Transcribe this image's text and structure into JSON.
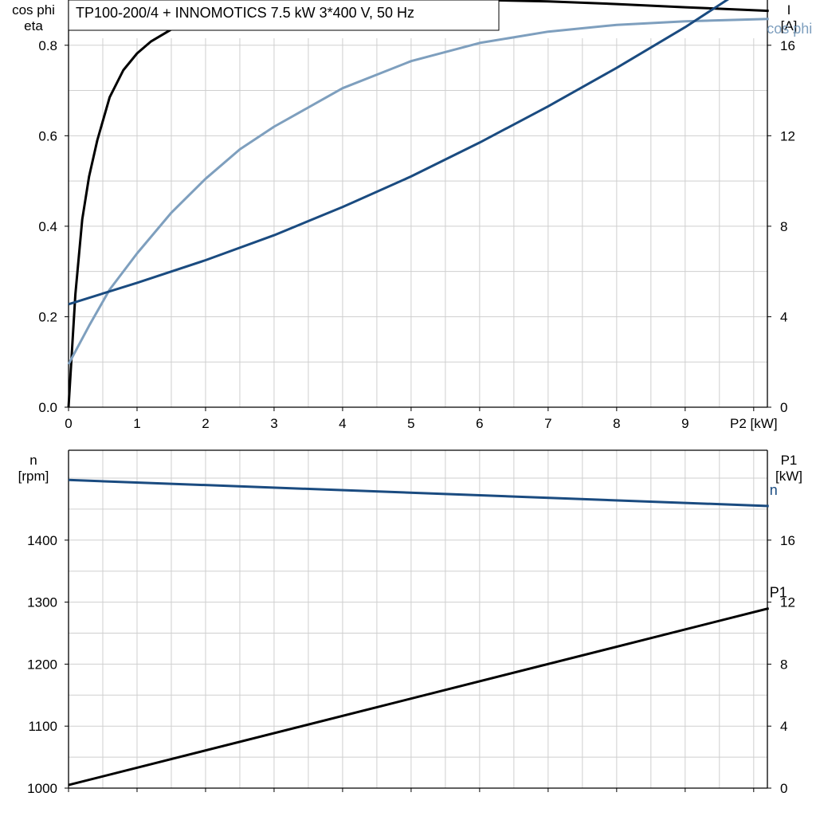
{
  "title": "TP100-200/4 + INNOMOTICS   7.5 kW   3*400 V, 50 Hz",
  "colors": {
    "dark_blue": "#1a4b80",
    "light_blue": "#7e9fbe",
    "black": "#000000",
    "grid": "#cfcfcf"
  },
  "chart_data": [
    {
      "type": "line",
      "xlabel": "P2 [kW]",
      "xlim": [
        0,
        10.2
      ],
      "xticks": [
        "0",
        "1",
        "2",
        "3",
        "4",
        "5",
        "6",
        "7",
        "8",
        "9"
      ],
      "ylabel_left": [
        "cos phi",
        "eta"
      ],
      "ylim_left": [
        0,
        0.9
      ],
      "yticks_left": [
        "0.0",
        "0.2",
        "0.4",
        "0.6",
        "0.8"
      ],
      "ylabel_right": [
        "I",
        "[A]"
      ],
      "ylim_right": [
        0,
        18
      ],
      "yticks_right": [
        "0",
        "4",
        "8",
        "12",
        "16"
      ],
      "grid": true,
      "series": [
        {
          "name": "eta",
          "axis": "left",
          "color": "#000000",
          "x": [
            0,
            0.1,
            0.2,
            0.3,
            0.42,
            0.6,
            0.8,
            1.0,
            1.2,
            1.5,
            2.0,
            2.5,
            3.0,
            4.0,
            5.0,
            6.0,
            7.0,
            8.0,
            9.0,
            10.22
          ],
          "y": [
            0.0,
            0.25,
            0.415,
            0.51,
            0.59,
            0.685,
            0.745,
            0.782,
            0.808,
            0.835,
            0.866,
            0.882,
            0.892,
            0.9,
            0.902,
            0.9,
            0.897,
            0.891,
            0.884,
            0.876
          ]
        },
        {
          "name": "cos phi",
          "axis": "left",
          "color": "#7e9fbe",
          "x": [
            0,
            0.3,
            0.6,
            1.0,
            1.5,
            2.0,
            2.5,
            3.0,
            4.0,
            5.0,
            6.0,
            7.0,
            8.0,
            9.0,
            10.22
          ],
          "y": [
            0.095,
            0.18,
            0.26,
            0.34,
            0.43,
            0.505,
            0.57,
            0.62,
            0.705,
            0.765,
            0.805,
            0.83,
            0.845,
            0.853,
            0.858
          ]
        },
        {
          "name": "I",
          "axis": "right",
          "color": "#1a4b80",
          "x": [
            0,
            1,
            2,
            3,
            4,
            5,
            6,
            7,
            8,
            9,
            10.22
          ],
          "y": [
            4.55,
            5.5,
            6.5,
            7.6,
            8.85,
            10.2,
            11.7,
            13.3,
            15.0,
            16.8,
            19.2
          ]
        }
      ]
    },
    {
      "type": "line",
      "xlim": [
        0,
        10.2
      ],
      "ylabel_left": [
        "n",
        "[rpm]"
      ],
      "ylim_left": [
        1000,
        1545
      ],
      "yticks_left": [
        "1000",
        "1100",
        "1200",
        "1300",
        "1400"
      ],
      "ylabel_right": [
        "P1",
        "[kW]"
      ],
      "ylim_right": [
        0,
        21.8
      ],
      "yticks_right": [
        "0",
        "4",
        "8",
        "12",
        "16"
      ],
      "grid": true,
      "series": [
        {
          "name": "n",
          "axis": "left",
          "color": "#1a4b80",
          "x": [
            0,
            10.22
          ],
          "y": [
            1497,
            1455
          ]
        },
        {
          "name": "P1",
          "axis": "right",
          "color": "#000000",
          "x": [
            0,
            10.22
          ],
          "y": [
            0.2,
            11.6
          ]
        }
      ]
    }
  ]
}
